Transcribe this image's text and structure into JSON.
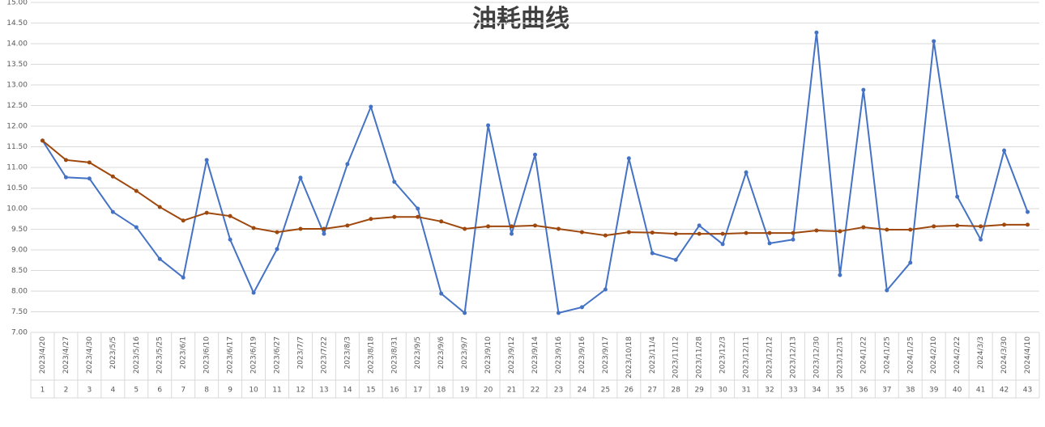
{
  "chart_data": {
    "type": "line",
    "title": "油耗曲线",
    "categories": [
      "2023/4/20",
      "2023/4/27",
      "2023/4/30",
      "2023/5/5",
      "2023/5/16",
      "2023/5/25",
      "2023/6/1",
      "2023/6/10",
      "2023/6/17",
      "2023/6/19",
      "2023/6/27",
      "2023/7/7",
      "2023/7/22",
      "2023/8/3",
      "2023/8/18",
      "2023/8/31",
      "2023/9/5",
      "2023/9/6",
      "2023/9/7",
      "2023/9/10",
      "2023/9/12",
      "2023/9/14",
      "2023/9/16",
      "2023/9/16",
      "2023/9/17",
      "2023/10/18",
      "2023/11/4",
      "2023/11/12",
      "2023/11/28",
      "2023/12/3",
      "2023/12/11",
      "2023/12/12",
      "2023/12/13",
      "2023/12/30",
      "2023/12/31",
      "2024/1/22",
      "2024/1/25",
      "2024/1/25",
      "2024/2/10",
      "2024/2/22",
      "2024/3/3",
      "2024/3/30",
      "2024/4/10"
    ],
    "category_index": [
      1,
      2,
      3,
      4,
      5,
      6,
      7,
      8,
      9,
      10,
      11,
      12,
      13,
      14,
      15,
      16,
      17,
      18,
      19,
      20,
      21,
      22,
      23,
      24,
      25,
      26,
      27,
      28,
      29,
      30,
      31,
      32,
      33,
      34,
      35,
      36,
      37,
      38,
      39,
      40,
      41,
      42,
      43
    ],
    "series": [
      {
        "color": "#4472c4",
        "values": [
          11.65,
          10.76,
          10.73,
          9.92,
          9.55,
          8.78,
          8.33,
          11.18,
          9.25,
          7.96,
          9.02,
          10.75,
          9.39,
          11.08,
          12.47,
          10.65,
          10.0,
          7.94,
          7.47,
          12.02,
          9.39,
          11.31,
          7.47,
          7.61,
          8.04,
          11.22,
          8.92,
          8.76,
          9.59,
          9.14,
          10.88,
          9.16,
          9.25,
          14.27,
          8.39,
          12.88,
          8.02,
          8.69,
          14.06,
          10.29,
          9.25,
          11.41,
          9.92
        ]
      },
      {
        "color": "#9e480e",
        "values": [
          11.65,
          11.18,
          11.12,
          10.78,
          10.43,
          10.04,
          9.71,
          9.9,
          9.82,
          9.53,
          9.43,
          9.51,
          9.51,
          9.59,
          9.75,
          9.8,
          9.8,
          9.69,
          9.51,
          9.57,
          9.57,
          9.59,
          9.51,
          9.43,
          9.35,
          9.43,
          9.42,
          9.39,
          9.39,
          9.39,
          9.41,
          9.41,
          9.41,
          9.47,
          9.45,
          9.55,
          9.49,
          9.49,
          9.57,
          9.59,
          9.57,
          9.61,
          9.61
        ]
      }
    ],
    "ylim": [
      7,
      15
    ],
    "yticks": [
      {
        "value": 7,
        "label": "7.00"
      },
      {
        "value": 7.5,
        "label": "7.50"
      },
      {
        "value": 8,
        "label": "8.00"
      },
      {
        "value": 8.5,
        "label": "8.50"
      },
      {
        "value": 9,
        "label": "9.00"
      },
      {
        "value": 9.5,
        "label": "9.50"
      },
      {
        "value": 10,
        "label": "10.00"
      },
      {
        "value": 10.5,
        "label": "10.50"
      },
      {
        "value": 11,
        "label": "11.00"
      },
      {
        "value": 11.5,
        "label": "11.50"
      },
      {
        "value": 12,
        "label": "12.00"
      },
      {
        "value": 12.5,
        "label": "12.50"
      },
      {
        "value": 13,
        "label": "13.00"
      },
      {
        "value": 13.5,
        "label": "13.50"
      },
      {
        "value": 14,
        "label": "14.00"
      },
      {
        "value": 14.5,
        "label": "14.50"
      },
      {
        "value": 15,
        "label": "15.00"
      }
    ],
    "grid": true
  }
}
